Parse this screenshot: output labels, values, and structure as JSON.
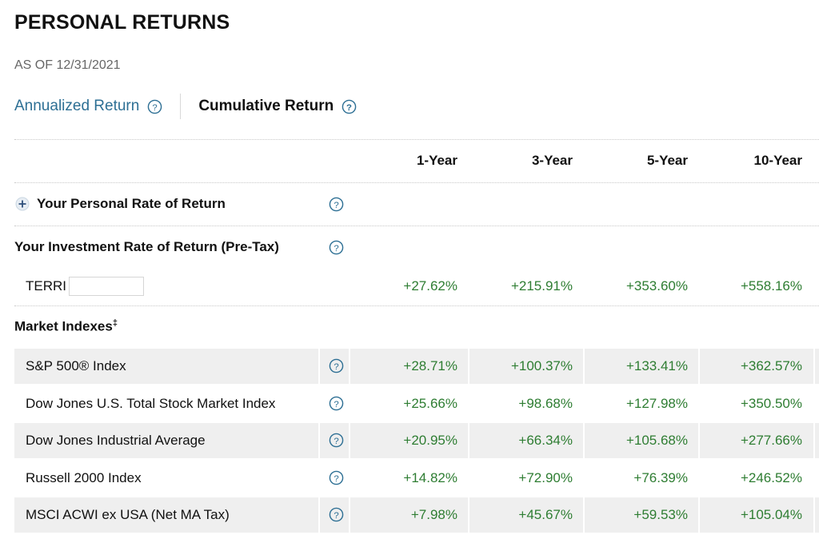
{
  "header": {
    "title": "PERSONAL RETURNS",
    "as_of": "AS OF 12/31/2021"
  },
  "tabs": [
    {
      "label": "Annualized Return",
      "active": false
    },
    {
      "label": "Cumulative Return",
      "active": true
    }
  ],
  "columns": [
    "1-Year",
    "3-Year",
    "5-Year",
    "10-Year"
  ],
  "personal": {
    "label": "Your Personal Rate of Return"
  },
  "investment": {
    "label": "Your Investment Rate of Return (Pre-Tax)",
    "account": {
      "name": "TERRI",
      "values": [
        "+27.62%",
        "+215.91%",
        "+353.60%",
        "+558.16%"
      ]
    }
  },
  "market": {
    "label": "Market Indexes",
    "footnote": "‡",
    "rows": [
      {
        "name": "S&P 500® Index",
        "values": [
          "+28.71%",
          "+100.37%",
          "+133.41%",
          "+362.57%"
        ]
      },
      {
        "name": "Dow Jones U.S. Total Stock Market Index",
        "values": [
          "+25.66%",
          "+98.68%",
          "+127.98%",
          "+350.50%"
        ]
      },
      {
        "name": "Dow Jones Industrial Average",
        "values": [
          "+20.95%",
          "+66.34%",
          "+105.68%",
          "+277.66%"
        ]
      },
      {
        "name": "Russell 2000 Index",
        "values": [
          "+14.82%",
          "+72.90%",
          "+76.39%",
          "+246.52%"
        ]
      },
      {
        "name": "MSCI ACWI ex USA (Net MA Tax)",
        "values": [
          "+7.98%",
          "+45.67%",
          "+59.53%",
          "+105.04%"
        ]
      }
    ]
  },
  "colors": {
    "accent": "#2d6f94",
    "positive": "#2e7d32",
    "shade": "#efefef"
  },
  "icons": {
    "help": "question-circle-icon",
    "expand": "plus-circle-icon"
  }
}
